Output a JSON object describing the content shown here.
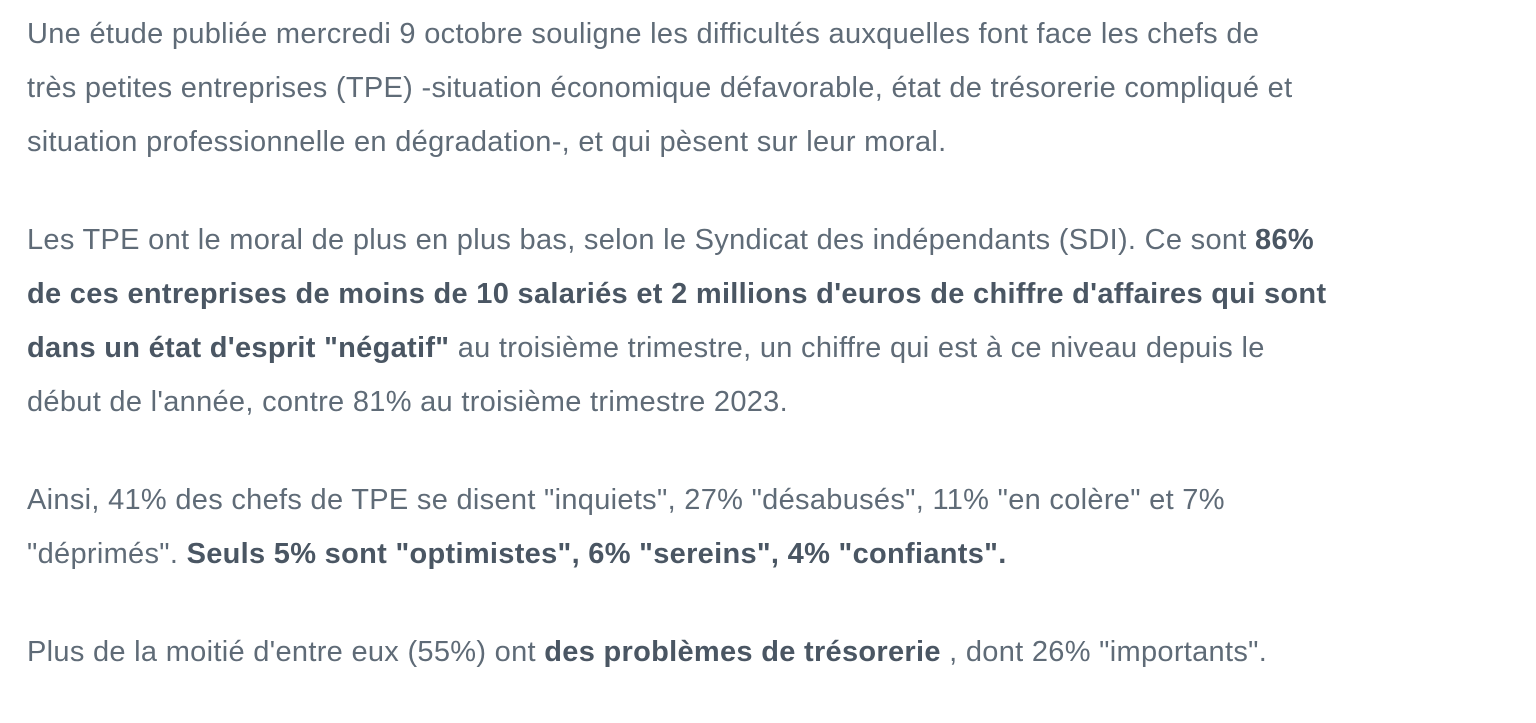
{
  "meta": {
    "language": "fr",
    "text_color": "#5f6b77",
    "bold_text_color": "#4a5663",
    "background_color": "#ffffff"
  },
  "article": {
    "paragraphs": [
      {
        "lines": [
          {
            "runs": [
              {
                "text": "Une étude publiée mercredi 9 octobre souligne les difficultés auxquelles font face les chefs de",
                "bold": false
              }
            ]
          },
          {
            "runs": [
              {
                "text": "très petites entreprises (TPE) -situation économique défavorable, état de trésorerie compliqué et",
                "bold": false
              }
            ]
          },
          {
            "runs": [
              {
                "text": "situation professionnelle en dégradation-, et qui pèsent sur leur moral.",
                "bold": false
              }
            ]
          }
        ]
      },
      {
        "lines": [
          {
            "runs": [
              {
                "text": "Les TPE ont le moral de plus en plus bas, selon le Syndicat des indépendants (SDI). Ce sont ",
                "bold": false
              },
              {
                "text": "86%",
                "bold": true
              }
            ]
          },
          {
            "runs": [
              {
                "text": "de ces entreprises de moins de 10 salariés et 2 millions d'euros de chiffre d'affaires qui sont",
                "bold": true
              }
            ]
          },
          {
            "runs": [
              {
                "text": "dans un état d'esprit \"négatif\"",
                "bold": true
              },
              {
                "text": " au troisième trimestre, un chiffre qui est à ce niveau depuis le",
                "bold": false
              }
            ]
          },
          {
            "runs": [
              {
                "text": "début de l'année, contre 81% au troisième trimestre 2023.",
                "bold": false
              }
            ]
          }
        ]
      },
      {
        "lines": [
          {
            "runs": [
              {
                "text": "Ainsi, 41% des chefs de TPE se disent \"inquiets\", 27% \"désabusés\", 11% \"en colère\" et 7%",
                "bold": false
              }
            ]
          },
          {
            "runs": [
              {
                "text": "\"déprimés\". ",
                "bold": false
              },
              {
                "text": "Seuls 5% sont \"optimistes\", 6% \"sereins\", 4% \"confiants\".",
                "bold": true
              }
            ]
          }
        ]
      },
      {
        "lines": [
          {
            "runs": [
              {
                "text": "Plus de la moitié d'entre eux (55%) ont ",
                "bold": false
              },
              {
                "text": "des problèmes de trésorerie",
                "bold": true
              },
              {
                "text": " , dont 26% \"importants\".",
                "bold": false
              }
            ]
          }
        ]
      }
    ]
  }
}
